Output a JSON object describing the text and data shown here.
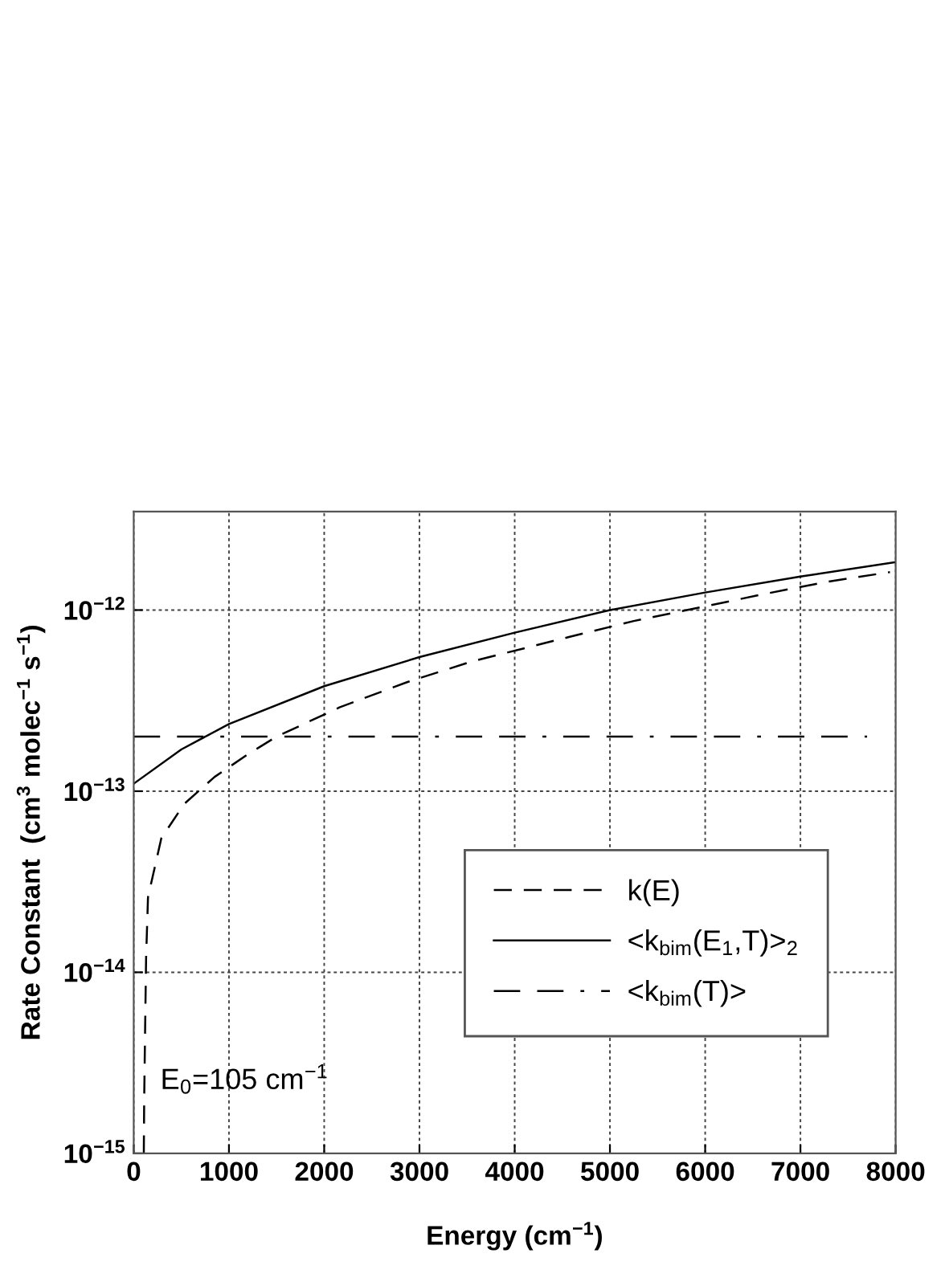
{
  "chart_data": {
    "type": "line",
    "xlabel": "Energy (cm$^{−1}$)",
    "ylabel": "Rate Constant  (cm$^{3}$ molec$^{−1}$ s$^{−1}$)",
    "log": "y",
    "xlim": [
      0,
      8000
    ],
    "ylim": [
      1e-15,
      3.5e-12
    ],
    "xticks": [
      0,
      1000,
      2000,
      3000,
      4000,
      5000,
      6000,
      7000,
      8000
    ],
    "yticks": [
      {
        "value": 1e-15,
        "label": "10$^{−15}$"
      },
      {
        "value": 1e-14,
        "label": "10$^{−14}$"
      },
      {
        "value": 1e-13,
        "label": "10$^{−13}$"
      },
      {
        "value": 1e-12,
        "label": "10$^{−12}$"
      }
    ],
    "grid": true,
    "legend": "bottom right",
    "annotations": [
      "E$_{0}$=105 cm$^{−1}$"
    ],
    "series": [
      {
        "name": "k(E)",
        "color": "#000000",
        "line_style": "dashed",
        "x": [
          106,
          110,
          120,
          130,
          150,
          290,
          530,
          850,
          1200,
          1500,
          2160,
          2870,
          3550,
          4570,
          5250,
          5930,
          6600,
          7270,
          7940
        ],
        "values": [
          1e-15,
          2e-15,
          5e-15,
          1.2e-14,
          2.6e-14,
          5.5e-14,
          8.5e-14,
          1.2e-13,
          1.6e-13,
          2e-13,
          2.9e-13,
          4e-13,
          5.2e-13,
          7.1e-13,
          8.7e-13,
          1.03e-12,
          1.22e-12,
          1.43e-12,
          1.62e-12
        ]
      },
      {
        "name": "<k$_{bim}$(E$_{1}$,T)>$_{2}$",
        "color": "#000000",
        "line_style": "solid",
        "x": [
          0,
          500,
          1000,
          2000,
          3000,
          4000,
          5000,
          6000,
          7000,
          8000
        ],
        "values": [
          1.1e-13,
          1.7e-13,
          2.35e-13,
          3.8e-13,
          5.5e-13,
          7.5e-13,
          1e-12,
          1.25e-12,
          1.53e-12,
          1.84e-12
        ]
      },
      {
        "name": "<k$_{bim}$(T)>",
        "color": "#000000",
        "line_style": "dashed",
        "x": [
          0,
          7700
        ],
        "values": [
          2e-13,
          2e-13
        ]
      }
    ]
  }
}
